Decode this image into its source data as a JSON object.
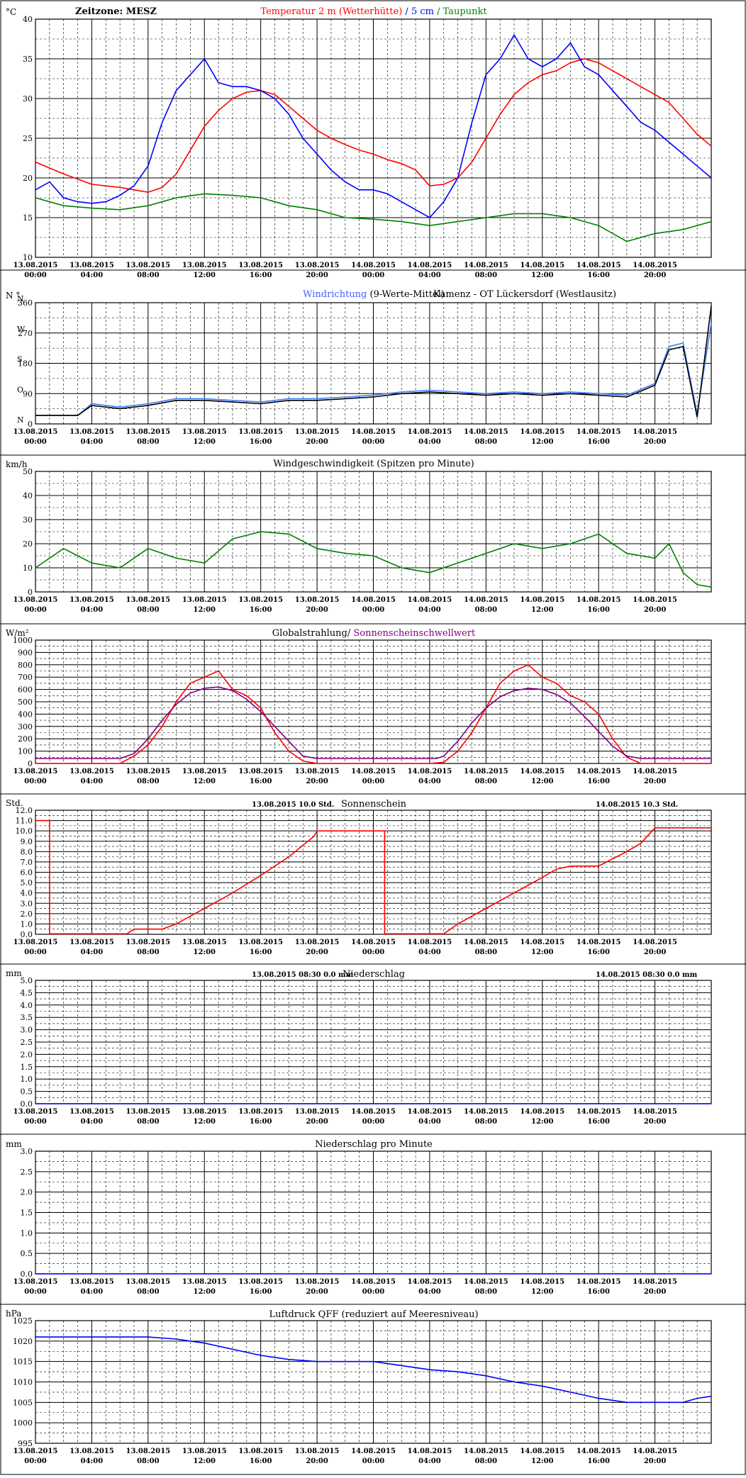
{
  "time_axis": {
    "days": [
      "13.08.2015",
      "13.08.2015",
      "13.08.2015",
      "13.08.2015",
      "13.08.2015",
      "13.08.2015",
      "14.08.2015",
      "14.08.2015",
      "14.08.2015",
      "14.08.2015",
      "14.08.2015",
      "14.08.2015"
    ],
    "times": [
      "00:00",
      "04:00",
      "08:00",
      "12:00",
      "16:00",
      "20:00",
      "00:00",
      "04:00",
      "08:00",
      "12:00",
      "16:00",
      "20:00"
    ],
    "hours_total": 48
  },
  "chart_data": [
    {
      "id": "temperature",
      "type": "line",
      "unit": "°C",
      "header_left": "Zeitzone: MESZ",
      "title_parts": [
        {
          "text": "Temperatur 2 m (Wetterhütte)",
          "color": "#ff0000"
        },
        {
          "text": "  /  ",
          "color": "#0000ff"
        },
        {
          "text": "5 cm",
          "color": "#0000ff"
        },
        {
          "text": " / ",
          "color": "#008000"
        },
        {
          "text": "Taupunkt",
          "color": "#008000"
        }
      ],
      "ylim": [
        10,
        40
      ],
      "yticks": [
        "10",
        "15",
        "20",
        "25",
        "30",
        "35",
        "40"
      ],
      "series": [
        {
          "color": "#ff0000",
          "x": [
            0,
            2,
            4,
            6,
            8,
            9,
            10,
            11,
            12,
            13,
            14,
            15,
            16,
            17,
            18,
            19,
            20,
            21,
            22,
            23,
            24,
            25,
            26,
            27,
            28,
            29,
            30,
            31,
            32,
            33,
            34,
            35,
            36,
            37,
            38,
            39,
            40,
            41,
            42,
            43,
            44,
            45,
            46,
            47,
            48
          ],
          "values": [
            22,
            20.5,
            19.2,
            18.8,
            18.2,
            18.8,
            20.5,
            23.5,
            26.5,
            28.5,
            30,
            30.8,
            31,
            30.5,
            29,
            27.5,
            26,
            25,
            24.2,
            23.5,
            23,
            22.3,
            21.8,
            21,
            19,
            19.2,
            20,
            22,
            25,
            28,
            30.5,
            32,
            33,
            33.5,
            34.5,
            35,
            34.5,
            33.5,
            32.5,
            31.5,
            30.5,
            29.5,
            27.5,
            25.5,
            24
          ]
        },
        {
          "color": "#0000ff",
          "x": [
            0,
            1,
            2,
            3,
            4,
            5,
            6,
            7,
            8,
            9,
            10,
            11,
            12,
            13,
            14,
            15,
            16,
            17,
            18,
            19,
            20,
            21,
            22,
            23,
            24,
            25,
            26,
            27,
            28,
            29,
            30,
            31,
            32,
            33,
            34,
            35,
            36,
            37,
            38,
            39,
            40,
            41,
            42,
            43,
            44,
            45,
            46,
            47,
            48
          ],
          "values": [
            18.5,
            19.5,
            17.5,
            17,
            16.8,
            17,
            17.8,
            19,
            21.5,
            27,
            31,
            33,
            35,
            32,
            31.5,
            31.5,
            31,
            30,
            28,
            25,
            23,
            21,
            19.5,
            18.5,
            18.5,
            18,
            17,
            16,
            15,
            17,
            20,
            27,
            33,
            35,
            38,
            35,
            34,
            35,
            37,
            34,
            33,
            31,
            29,
            27,
            26,
            24.5,
            23,
            21.5,
            20
          ]
        },
        {
          "color": "#008000",
          "x": [
            0,
            2,
            4,
            6,
            8,
            10,
            12,
            14,
            16,
            18,
            20,
            22,
            24,
            26,
            28,
            30,
            32,
            34,
            36,
            38,
            40,
            41,
            42,
            44,
            46,
            48
          ],
          "values": [
            17.5,
            16.5,
            16.2,
            16,
            16.5,
            17.5,
            18,
            17.8,
            17.5,
            16.5,
            16,
            15,
            14.8,
            14.5,
            14,
            14.5,
            15,
            15.5,
            15.5,
            15,
            14,
            13,
            12,
            13,
            13.5,
            14.5
          ]
        }
      ]
    },
    {
      "id": "wind_direction",
      "type": "line",
      "unit": "N °",
      "title_parts": [
        {
          "text": "Windrichtung",
          "color": "#4060ff"
        },
        {
          "text": " (9-Werte-Mittel)",
          "color": "#000000"
        }
      ],
      "title_right": "Kamenz - OT Lückersdorf (Westlausitz)",
      "ylim": [
        0,
        360
      ],
      "yticks": [
        "0",
        "90",
        "180",
        "270",
        "360"
      ],
      "compass_labels": [
        "N",
        "O",
        "S",
        "W",
        "N"
      ],
      "series": [
        {
          "name_hidden": "raw",
          "color": "#4080ff",
          "x": [
            0,
            3,
            4,
            6,
            8,
            10,
            12,
            14,
            16,
            18,
            20,
            22,
            24,
            26,
            28,
            30,
            32,
            34,
            36,
            38,
            40,
            42,
            44,
            45,
            46,
            47,
            48
          ],
          "values": [
            25,
            25,
            60,
            50,
            60,
            75,
            75,
            70,
            65,
            75,
            75,
            80,
            85,
            95,
            100,
            95,
            90,
            95,
            90,
            95,
            90,
            85,
            120,
            230,
            240,
            30,
            300
          ]
        },
        {
          "name_hidden": "mean",
          "color": "#000000",
          "x": [
            0,
            3,
            4,
            6,
            8,
            10,
            12,
            14,
            16,
            18,
            20,
            22,
            24,
            26,
            28,
            30,
            32,
            34,
            36,
            38,
            40,
            42,
            44,
            45,
            46,
            47,
            48
          ],
          "values": [
            25,
            25,
            55,
            45,
            55,
            70,
            70,
            65,
            60,
            70,
            70,
            75,
            80,
            90,
            95,
            90,
            85,
            90,
            85,
            90,
            85,
            80,
            115,
            220,
            230,
            20,
            350
          ]
        }
      ]
    },
    {
      "id": "wind_speed",
      "type": "line",
      "unit": "km/h",
      "title_parts": [
        {
          "text": "Windgeschwindigkeit (Spitzen pro Minute)",
          "color": "#000000"
        }
      ],
      "ylim": [
        0,
        50
      ],
      "yticks": [
        "0",
        "10",
        "20",
        "30",
        "40",
        "50"
      ],
      "series": [
        {
          "color": "#008000",
          "x": [
            0,
            2,
            4,
            6,
            8,
            10,
            12,
            14,
            16,
            18,
            20,
            22,
            24,
            26,
            28,
            30,
            32,
            34,
            36,
            38,
            40,
            42,
            44,
            45,
            46,
            47,
            48
          ],
          "values": [
            10,
            18,
            12,
            10,
            18,
            14,
            12,
            22,
            25,
            24,
            18,
            16,
            15,
            10,
            8,
            12,
            16,
            20,
            18,
            20,
            24,
            16,
            14,
            20,
            8,
            3,
            2
          ]
        }
      ]
    },
    {
      "id": "radiation",
      "type": "line",
      "unit": "W/m²",
      "title_parts": [
        {
          "text": "Globalstrahlung/",
          "color": "#000000"
        },
        {
          "text": " Sonnenscheinschwellwert",
          "color": "#800080"
        }
      ],
      "ylim": [
        0,
        1000
      ],
      "yticks": [
        "0",
        "100",
        "200",
        "300",
        "400",
        "500",
        "600",
        "700",
        "800",
        "900",
        "1000"
      ],
      "series": [
        {
          "color": "#ff0000",
          "x": [
            0,
            5.5,
            6,
            7,
            8,
            9,
            10,
            11,
            12,
            13,
            14,
            15,
            16,
            17,
            18,
            19,
            20,
            21,
            22,
            23,
            24,
            25,
            26,
            27,
            28,
            29,
            30,
            31,
            32,
            33,
            34,
            35,
            36,
            37,
            38,
            39,
            40,
            41,
            42,
            43,
            44,
            45,
            46,
            47,
            48
          ],
          "values": [
            0,
            0,
            0,
            60,
            150,
            300,
            500,
            650,
            700,
            750,
            600,
            550,
            450,
            250,
            100,
            20,
            0,
            0,
            0,
            0,
            0,
            0,
            0,
            0,
            0,
            10,
            100,
            250,
            450,
            650,
            750,
            800,
            700,
            650,
            550,
            500,
            400,
            200,
            50,
            0,
            0,
            0,
            0,
            0,
            0
          ]
        },
        {
          "color": "#800080",
          "x": [
            0,
            6,
            7,
            8,
            9,
            10,
            11,
            12,
            13,
            14,
            15,
            16,
            17,
            18,
            19,
            20,
            28.5,
            29,
            30,
            31,
            32,
            33,
            34,
            35,
            36,
            37,
            38,
            39,
            40,
            41,
            42,
            43,
            48
          ],
          "values": [
            40,
            40,
            80,
            200,
            350,
            480,
            570,
            610,
            620,
            590,
            520,
            420,
            300,
            180,
            60,
            40,
            40,
            60,
            180,
            330,
            450,
            540,
            590,
            610,
            600,
            560,
            490,
            380,
            260,
            140,
            60,
            40,
            40
          ]
        }
      ]
    },
    {
      "id": "sunshine",
      "type": "line",
      "unit": "Std.",
      "title_parts": [
        {
          "text": "Sonnenschein",
          "color": "#000000"
        }
      ],
      "notes": [
        {
          "date": "13.08.2015",
          "value": "10.0",
          "unit": "Std."
        },
        {
          "date": "14.08.2015",
          "value": "10.3",
          "unit": "Std."
        }
      ],
      "ylim": [
        0,
        12
      ],
      "yticks": [
        "0.0",
        "1.0",
        "2.0",
        "3.0",
        "4.0",
        "5.0",
        "6.0",
        "7.0",
        "8.0",
        "9.0",
        "10.0",
        "11.0",
        "12.0"
      ],
      "series": [
        {
          "color": "#ff0000",
          "x": [
            0,
            1,
            1,
            6.5,
            7,
            9,
            10,
            12,
            14,
            16,
            18,
            19.8,
            20,
            24.8,
            24.8,
            29,
            30,
            32,
            34,
            36,
            37,
            38,
            40,
            41,
            42,
            43,
            44,
            48
          ],
          "values": [
            11,
            11,
            0.05,
            0.05,
            0.5,
            0.5,
            1,
            2.5,
            4,
            5.7,
            7.5,
            9.5,
            10,
            10,
            0.05,
            0.05,
            1,
            2.5,
            4,
            5.5,
            6.3,
            6.6,
            6.6,
            7.3,
            8,
            8.8,
            10.3,
            10.3
          ]
        }
      ]
    },
    {
      "id": "precipitation",
      "type": "line",
      "unit": "mm",
      "title_parts": [
        {
          "text": "Niederschlag",
          "color": "#000000"
        }
      ],
      "notes": [
        {
          "date": "13.08.2015 08:30",
          "value": "0.0",
          "unit": "mm"
        },
        {
          "date": "14.08.2015 08:30",
          "value": "0.0",
          "unit": "mm"
        }
      ],
      "ylim": [
        0,
        5
      ],
      "yticks": [
        "0.0",
        "0.5",
        "1.0",
        "1.5",
        "2.0",
        "2.5",
        "3.0",
        "3.5",
        "4.0",
        "4.5",
        "5.0"
      ],
      "series": [
        {
          "color": "#0000ff",
          "x": [
            0,
            48
          ],
          "values": [
            0,
            0
          ]
        }
      ]
    },
    {
      "id": "precip_minute",
      "type": "line",
      "unit": "mm",
      "title_parts": [
        {
          "text": "Niederschlag pro Minute",
          "color": "#000000"
        }
      ],
      "ylim": [
        0,
        3
      ],
      "yticks": [
        "0.0",
        "0.5",
        "1.0",
        "1.5",
        "2.0",
        "2.5",
        "3.0"
      ],
      "series": [
        {
          "color": "#0000ff",
          "x": [
            0,
            48
          ],
          "values": [
            0,
            0
          ]
        }
      ]
    },
    {
      "id": "pressure",
      "type": "line",
      "unit": "hPa",
      "title_parts": [
        {
          "text": "Luftdruck QFF (reduziert auf Meeresniveau)",
          "color": "#000000"
        }
      ],
      "ylim": [
        995,
        1025
      ],
      "yticks": [
        "995",
        "1000",
        "1005",
        "1010",
        "1015",
        "1020",
        "1025"
      ],
      "series": [
        {
          "color": "#0000ff",
          "x": [
            0,
            2,
            4,
            6,
            8,
            10,
            12,
            14,
            16,
            18,
            20,
            22,
            24,
            26,
            28,
            30,
            32,
            34,
            36,
            38,
            40,
            42,
            44,
            46,
            47,
            48
          ],
          "values": [
            1021,
            1021,
            1021,
            1021,
            1021,
            1020.5,
            1019.5,
            1018,
            1016.5,
            1015.5,
            1015,
            1015,
            1015,
            1014,
            1013,
            1012.5,
            1011.5,
            1010,
            1009,
            1007.5,
            1006,
            1005,
            1005,
            1005,
            1006,
            1006.5
          ]
        }
      ]
    }
  ]
}
